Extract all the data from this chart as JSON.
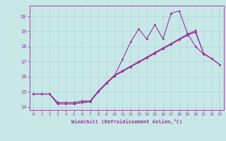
{
  "xlabel": "Windchill (Refroidissement éolien,°C)",
  "bg_color": "#c8e8e8",
  "line_color": "#993399",
  "grid_color": "#b0d4d4",
  "xlim": [
    -0.5,
    23.5
  ],
  "ylim": [
    13.8,
    20.7
  ],
  "xticks": [
    0,
    1,
    2,
    3,
    4,
    5,
    6,
    7,
    8,
    9,
    10,
    11,
    12,
    13,
    14,
    15,
    16,
    17,
    18,
    19,
    20,
    21,
    22,
    23
  ],
  "yticks": [
    14,
    15,
    16,
    17,
    18,
    19,
    20
  ],
  "series": [
    [
      14.85,
      14.85,
      14.85,
      14.2,
      14.2,
      14.2,
      14.3,
      14.35,
      15.0,
      15.55,
      16.05,
      17.15,
      18.3,
      19.15,
      18.5,
      19.45,
      18.5,
      20.2,
      20.35,
      18.9,
      18.0,
      17.5,
      17.2,
      null
    ],
    [
      14.85,
      14.85,
      14.85,
      14.2,
      14.2,
      14.2,
      14.3,
      14.35,
      15.0,
      15.55,
      16.05,
      16.35,
      16.65,
      16.95,
      17.25,
      17.55,
      17.85,
      18.15,
      18.45,
      18.75,
      18.95,
      null,
      null,
      null
    ],
    [
      14.85,
      14.85,
      14.85,
      14.3,
      14.3,
      14.3,
      14.4,
      14.4,
      15.05,
      15.6,
      16.1,
      16.4,
      16.7,
      17.0,
      17.3,
      17.6,
      17.9,
      18.2,
      18.5,
      18.8,
      19.05,
      17.55,
      17.2,
      16.8
    ],
    [
      14.85,
      14.85,
      14.85,
      14.2,
      14.2,
      14.2,
      14.3,
      14.35,
      15.0,
      15.55,
      16.05,
      16.35,
      16.65,
      16.95,
      17.25,
      17.55,
      17.85,
      18.15,
      18.45,
      18.75,
      18.95,
      17.55,
      17.2,
      16.8
    ]
  ]
}
